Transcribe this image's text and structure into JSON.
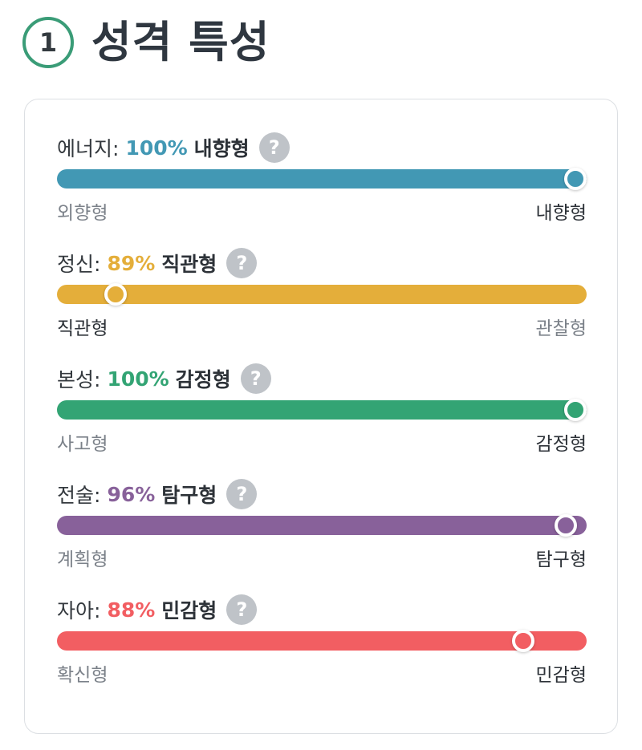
{
  "header": {
    "step_number": "1",
    "title": "성격 특성"
  },
  "help_glyph": "?",
  "traits": [
    {
      "name": "에너지:",
      "percent": "100%",
      "position": 1.0,
      "type": "내향형",
      "left_label": "외향형",
      "right_label": "내향형",
      "highlight": "right",
      "color": "#4298b4"
    },
    {
      "name": "정신:",
      "percent": "89%",
      "position": 0.11,
      "type": "직관형",
      "left_label": "직관형",
      "right_label": "관찰형",
      "highlight": "left",
      "color": "#e4ae3a"
    },
    {
      "name": "본성:",
      "percent": "100%",
      "position": 1.0,
      "type": "감정형",
      "left_label": "사고형",
      "right_label": "감정형",
      "highlight": "right",
      "color": "#33a474"
    },
    {
      "name": "전술:",
      "percent": "96%",
      "position": 0.96,
      "type": "탐구형",
      "left_label": "계획형",
      "right_label": "탐구형",
      "highlight": "right",
      "color": "#88619a"
    },
    {
      "name": "자아:",
      "percent": "88%",
      "position": 0.88,
      "type": "민감형",
      "left_label": "확신형",
      "right_label": "민감형",
      "highlight": "right",
      "color": "#f25e62"
    }
  ]
}
